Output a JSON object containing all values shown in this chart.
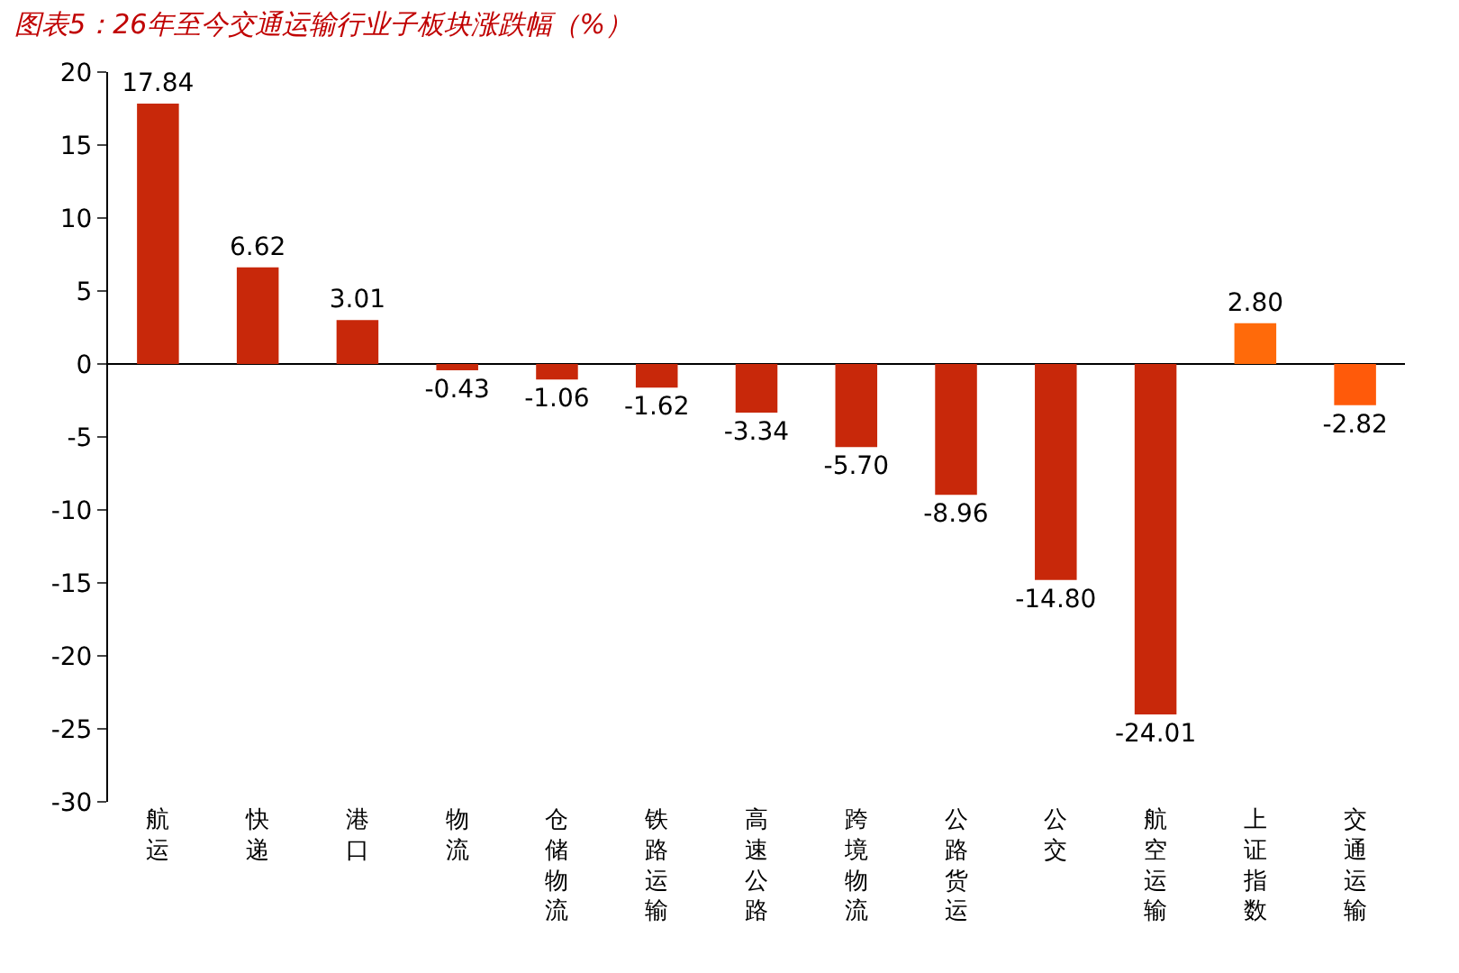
{
  "chart_data": {
    "type": "bar",
    "title": "图表5：26年至今交通运输行业子板块涨跌幅（%）",
    "categories": [
      "航运",
      "快递",
      "港口",
      "物流",
      "仓储物流",
      "铁路运输",
      "高速公路",
      "跨境物流",
      "公路货运",
      "公交",
      "航空运输",
      "上证指数",
      "交通运输"
    ],
    "values": [
      17.84,
      6.62,
      3.01,
      -0.43,
      -1.06,
      -1.62,
      -3.34,
      -5.7,
      -8.96,
      -14.8,
      -24.01,
      2.8,
      -2.82
    ],
    "colors": [
      "#c8280a",
      "#c8280a",
      "#c8280a",
      "#c8280a",
      "#c8280a",
      "#c8280a",
      "#c8280a",
      "#c8280a",
      "#c8280a",
      "#c8280a",
      "#c8280a",
      "#ff6a0a",
      "#ff5a0a"
    ],
    "value_labels": [
      "17.84",
      "6.62",
      "3.01",
      "-0.43",
      "-1.06",
      "-1.62",
      "-3.34",
      "-5.70",
      "-8.96",
      "-14.80",
      "-24.01",
      "2.80",
      "-2.82"
    ],
    "ylim": [
      -30,
      20
    ],
    "yticks": [
      -30,
      -25,
      -20,
      -15,
      -10,
      -5,
      0,
      5,
      10,
      15,
      20
    ]
  }
}
